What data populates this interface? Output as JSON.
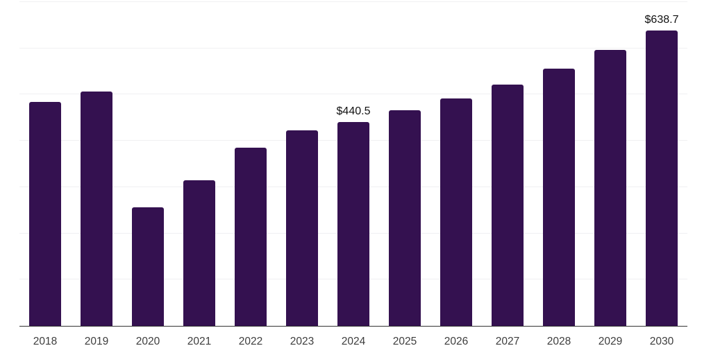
{
  "chart_data": {
    "type": "bar",
    "title": "",
    "xlabel": "",
    "ylabel": "",
    "categories": [
      "2018",
      "2019",
      "2020",
      "2021",
      "2022",
      "2023",
      "2024",
      "2025",
      "2026",
      "2027",
      "2028",
      "2029",
      "2030"
    ],
    "values": [
      484,
      507,
      256,
      315,
      385,
      423,
      440.5,
      466,
      492,
      522,
      556,
      596,
      638.7
    ],
    "data_labels": [
      {
        "category": "2024",
        "text": "$440.5"
      },
      {
        "category": "2030",
        "text": "$638.7"
      }
    ],
    "ylim": [
      0,
      700
    ],
    "gridline_values": [
      100,
      200,
      300,
      400,
      500,
      600,
      700
    ],
    "grid": "horizontal",
    "legend": "none",
    "y_axis_tick_labels_visible": false
  },
  "style": {
    "bar_color": "#341150",
    "grid_color": "#f0f0f2",
    "axis_line_color": "#333333",
    "tick_label_color": "#3d3d3d",
    "data_label_color": "#111111",
    "background_color": "#ffffff"
  }
}
